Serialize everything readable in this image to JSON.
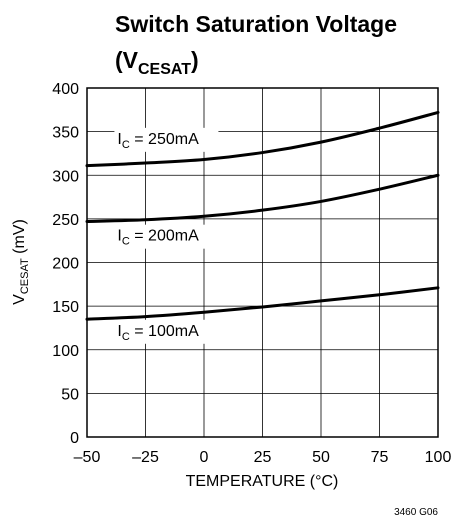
{
  "chart_data": {
    "type": "line",
    "title": {
      "line1": "Switch Saturation Voltage",
      "line2_open": "(V",
      "line2_sub": "CESAT",
      "line2_close": ")"
    },
    "xlabel": "TEMPERATURE (°C)",
    "ylabel": {
      "main": "V",
      "sub": "CESAT",
      "rest": " (mV)"
    },
    "xlim": [
      -50,
      100
    ],
    "ylim": [
      0,
      400
    ],
    "x_ticks": [
      -50,
      -25,
      0,
      25,
      50,
      75,
      100
    ],
    "x_tick_labels": [
      "–50",
      "–25",
      "0",
      "25",
      "50",
      "75",
      "100"
    ],
    "y_ticks": [
      0,
      50,
      100,
      150,
      200,
      250,
      300,
      350,
      400
    ],
    "y_tick_labels": [
      "0",
      "50",
      "100",
      "150",
      "200",
      "250",
      "300",
      "350",
      "400"
    ],
    "grid": true,
    "series": [
      {
        "label_main": "I",
        "label_sub": "C",
        "label_rest": " = 250mA",
        "label_at": [
          -37,
          336
        ],
        "x": [
          -50,
          -25,
          0,
          25,
          50,
          75,
          100
        ],
        "y": [
          311,
          314,
          318,
          326,
          338,
          354,
          372
        ]
      },
      {
        "label_main": "I",
        "label_sub": "C",
        "label_rest": " = 200mA",
        "label_at": [
          -37,
          225
        ],
        "x": [
          -50,
          -25,
          0,
          25,
          50,
          75,
          100
        ],
        "y": [
          247,
          249,
          253,
          260,
          270,
          284,
          300
        ]
      },
      {
        "label_main": "I",
        "label_sub": "C",
        "label_rest": " = 100mA",
        "label_at": [
          -37,
          116
        ],
        "x": [
          -50,
          -25,
          0,
          25,
          50,
          75,
          100
        ],
        "y": [
          135,
          138,
          143,
          149,
          156,
          163,
          171
        ]
      }
    ],
    "footnote": "3460 G06"
  }
}
